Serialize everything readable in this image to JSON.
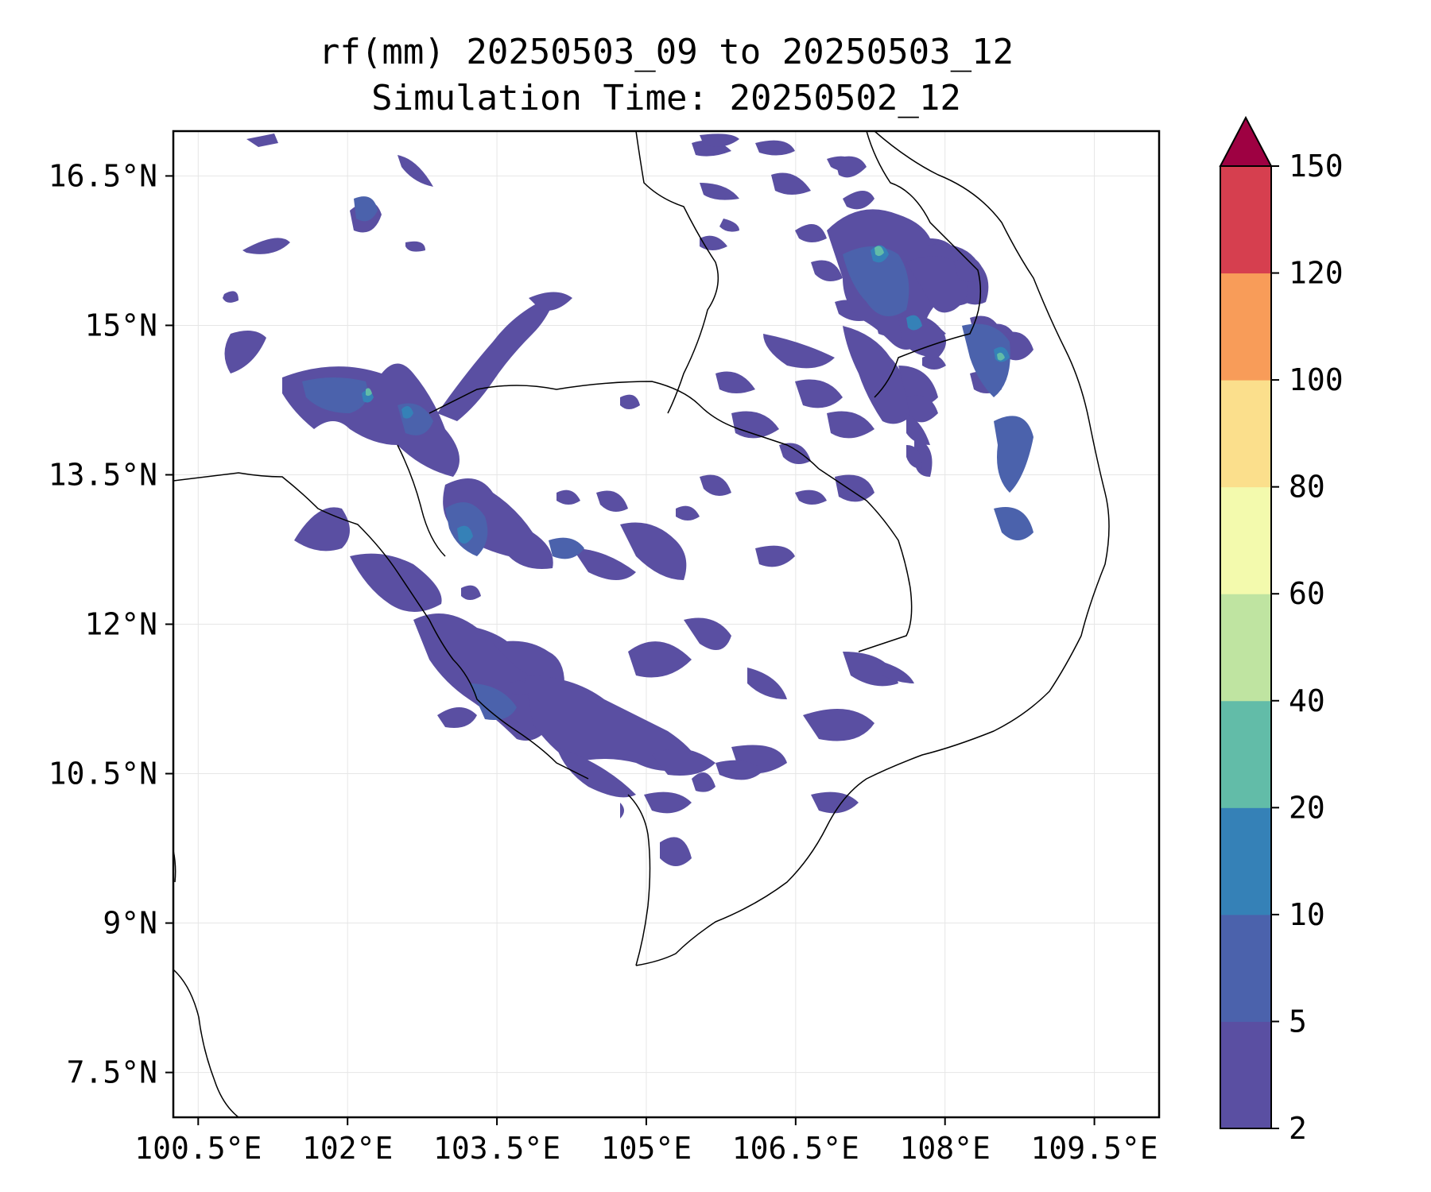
{
  "title": {
    "line1": "rf(mm) 20250503_09 to 20250503_12",
    "line2": "Simulation Time: 20250502_12"
  },
  "map": {
    "lon_range": [
      100.25,
      110.15
    ],
    "lat_range": [
      7.05,
      16.95
    ],
    "lon_ticks": [
      100.5,
      102,
      103.5,
      105,
      106.5,
      108,
      109.5
    ],
    "lon_tick_labels": [
      "100.5°E",
      "102°E",
      "103.5°E",
      "105°E",
      "106.5°E",
      "108°E",
      "109.5°E"
    ],
    "lat_ticks": [
      16.5,
      15,
      13.5,
      12,
      10.5,
      9,
      7.5
    ],
    "lat_tick_labels": [
      "16.5°N",
      "15°N",
      "13.5°N",
      "12°N",
      "10.5°N",
      "9°N",
      "7.5°N"
    ],
    "gridlines": true
  },
  "colorbar": {
    "levels": [
      2,
      5,
      10,
      20,
      40,
      60,
      80,
      100,
      120,
      150
    ],
    "labels": [
      "2",
      "5",
      "10",
      "20",
      "40",
      "60",
      "80",
      "100",
      "120",
      "150"
    ],
    "colors": [
      "#5a4fa2",
      "#4b62ac",
      "#3581b7",
      "#62bca8",
      "#bfe4a1",
      "#f3faad",
      "#fbdf8c",
      "#f89c59",
      "#d63f4f"
    ],
    "extend_color": "#9e0142",
    "extend": "max"
  }
}
